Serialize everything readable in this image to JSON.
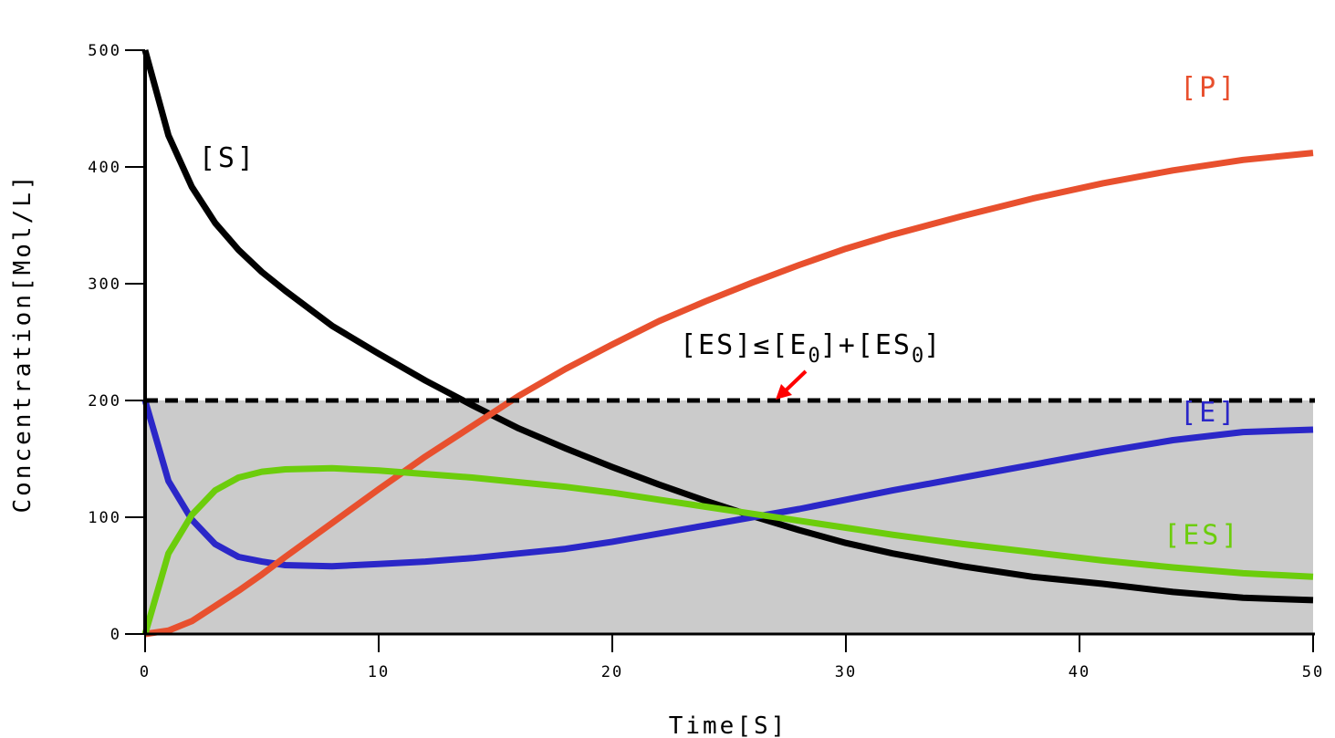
{
  "chart_data": {
    "type": "line",
    "xlabel": "Time[S]",
    "ylabel": "Concentration[Mol/L]",
    "xlim": [
      0,
      50
    ],
    "ylim": [
      0,
      500
    ],
    "x_ticks": [
      "0",
      "10",
      "20",
      "30",
      "40",
      "50"
    ],
    "y_ticks": [
      "0",
      "100",
      "200",
      "300",
      "400",
      "500"
    ],
    "grid": false,
    "legend": "inline labels",
    "bound": {
      "value": 200,
      "label_main": "[ES]≤[E",
      "label_sub1": "0",
      "label_mid": "]+[ES",
      "label_sub2": "0",
      "label_end": "]"
    },
    "series": [
      {
        "name": "[S]",
        "color": "#000000",
        "label_x": 2.3,
        "label_y": 400,
        "x": [
          0,
          1,
          2,
          3,
          4,
          5,
          6,
          8,
          10,
          12,
          14,
          16,
          18,
          20,
          22,
          24,
          26,
          28,
          30,
          32,
          35,
          38,
          41,
          44,
          47,
          50
        ],
        "y": [
          500,
          427,
          383,
          352,
          329,
          310,
          294,
          264,
          240,
          217,
          196,
          176,
          159,
          143,
          128,
          114,
          101,
          89,
          78,
          69,
          58,
          49,
          43,
          36,
          31,
          29
        ]
      },
      {
        "name": "[P]",
        "color": "#e8502e",
        "label_x": 44.3,
        "label_y": 460,
        "x": [
          0,
          1,
          2,
          3,
          4,
          5,
          6,
          8,
          10,
          12,
          14,
          16,
          18,
          20,
          22,
          24,
          26,
          28,
          30,
          32,
          35,
          38,
          41,
          44,
          47,
          50
        ],
        "y": [
          0,
          3,
          11,
          24,
          37,
          51,
          66,
          95,
          124,
          152,
          178,
          204,
          227,
          248,
          268,
          285,
          301,
          316,
          330,
          342,
          358,
          373,
          386,
          397,
          406,
          412
        ]
      },
      {
        "name": "[E]",
        "color": "#2b27c8",
        "label_x": 44.3,
        "label_y": 182,
        "x": [
          0,
          1,
          2,
          3,
          4,
          5,
          6,
          8,
          10,
          12,
          14,
          16,
          18,
          20,
          22,
          24,
          26,
          28,
          30,
          32,
          35,
          38,
          41,
          44,
          47,
          50
        ],
        "y": [
          200,
          131,
          98,
          77,
          66,
          62,
          59,
          58,
          60,
          62,
          65,
          69,
          73,
          79,
          86,
          93,
          100,
          107,
          115,
          123,
          134,
          145,
          156,
          166,
          173,
          175
        ]
      },
      {
        "name": "[ES]",
        "color": "#6ccd0c",
        "label_x": 43.6,
        "label_y": 77,
        "x": [
          0,
          1,
          2,
          3,
          4,
          5,
          6,
          8,
          10,
          12,
          14,
          16,
          18,
          20,
          22,
          24,
          26,
          28,
          30,
          32,
          35,
          38,
          41,
          44,
          47,
          50
        ],
        "y": [
          0,
          69,
          102,
          123,
          134,
          139,
          141,
          142,
          140,
          137,
          134,
          130,
          126,
          121,
          115,
          109,
          103,
          97,
          91,
          85,
          77,
          70,
          63,
          57,
          52,
          49
        ]
      }
    ]
  }
}
